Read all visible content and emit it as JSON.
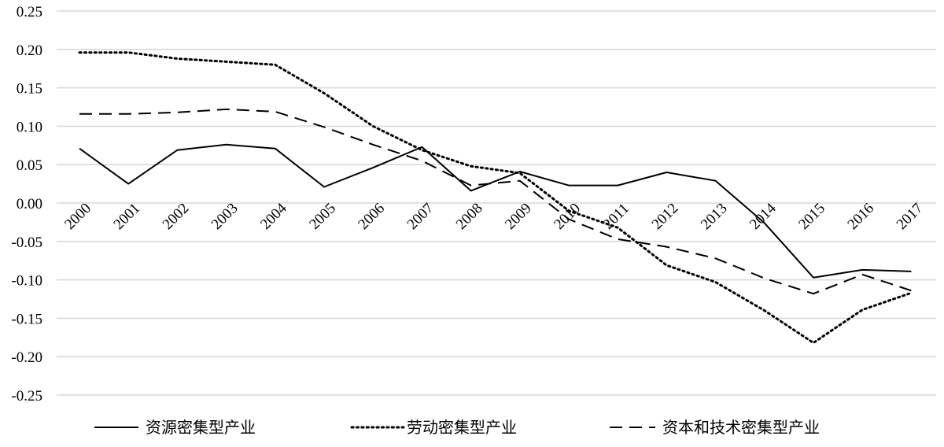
{
  "chart_data": {
    "type": "line",
    "x": [
      "2000",
      "2001",
      "2002",
      "2003",
      "2004",
      "2005",
      "2006",
      "2007",
      "2008",
      "2009",
      "2010",
      "2011",
      "2012",
      "2013",
      "2014",
      "2015",
      "2016",
      "2017"
    ],
    "ylim": [
      -0.25,
      0.25
    ],
    "yticks": [
      0.25,
      0.2,
      0.15,
      0.1,
      0.05,
      0.0,
      -0.05,
      -0.1,
      -0.15,
      -0.2,
      -0.25
    ],
    "ytick_labels": [
      "0.25",
      "0.20",
      "0.15",
      "0.10",
      "0.05",
      "0.00",
      "-0.05",
      "-0.10",
      "-0.15",
      "-0.20",
      "-0.25"
    ],
    "grid": true,
    "legend_position": "bottom",
    "series": [
      {
        "name": "资源密集型产业",
        "style": "solid",
        "color": "#000000",
        "values": [
          0.071,
          0.025,
          0.069,
          0.076,
          0.071,
          0.021,
          0.046,
          0.073,
          0.016,
          0.041,
          0.023,
          0.023,
          0.04,
          0.029,
          -0.026,
          -0.097,
          -0.087,
          -0.089
        ]
      },
      {
        "name": "劳动密集型产业",
        "style": "dotted",
        "color": "#000000",
        "values": [
          0.196,
          0.196,
          0.188,
          0.184,
          0.18,
          0.143,
          0.1,
          0.069,
          0.048,
          0.039,
          -0.01,
          -0.032,
          -0.081,
          -0.103,
          -0.14,
          -0.182,
          -0.139,
          -0.117
        ]
      },
      {
        "name": "资本和技术密集型产业",
        "style": "dashed",
        "color": "#000000",
        "values": [
          0.116,
          0.116,
          0.118,
          0.122,
          0.119,
          0.099,
          0.076,
          0.055,
          0.023,
          0.029,
          -0.021,
          -0.047,
          -0.057,
          -0.072,
          -0.098,
          -0.118,
          -0.093,
          -0.114
        ]
      }
    ]
  }
}
